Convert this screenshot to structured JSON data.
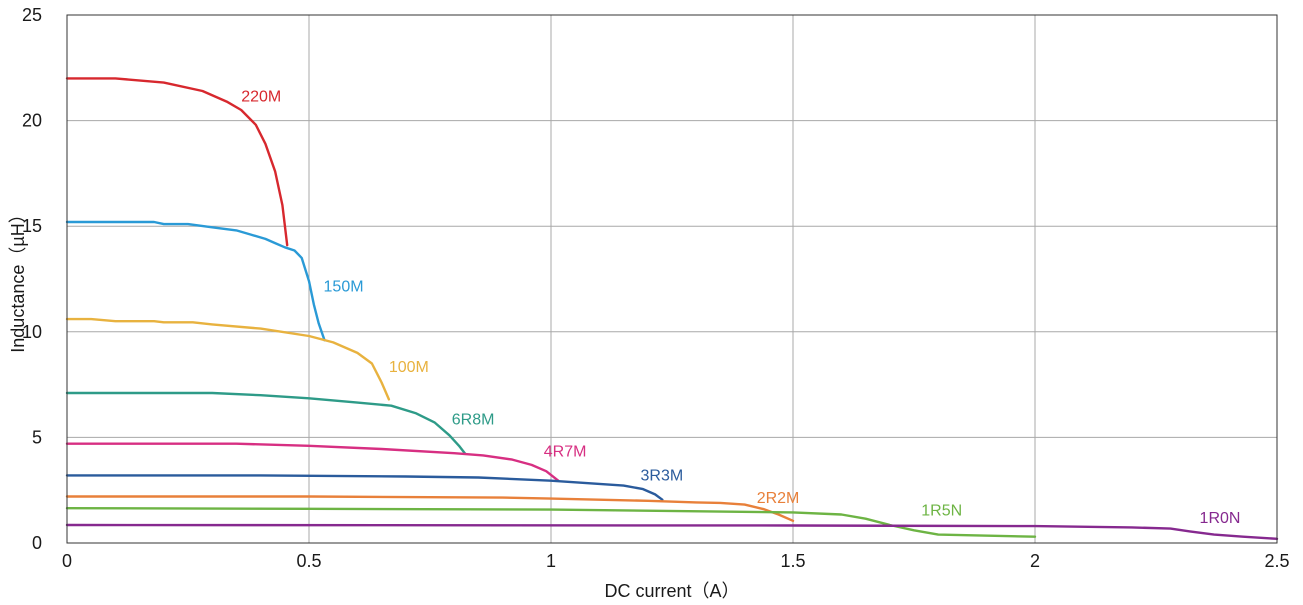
{
  "chart_data": {
    "type": "line",
    "xlabel": "DC current（A）",
    "ylabel": "Inductance（µH）",
    "xlim": [
      0,
      2.5
    ],
    "ylim": [
      0,
      25
    ],
    "x_ticks": [
      0,
      0.5,
      1,
      1.5,
      2,
      2.5
    ],
    "x_tick_labels": [
      "0",
      "0.5",
      "1",
      "1.5",
      "2",
      "2.5"
    ],
    "y_ticks": [
      0,
      5,
      10,
      15,
      20,
      25
    ],
    "y_tick_labels": [
      "0",
      "5",
      "10",
      "15",
      "20",
      "25"
    ],
    "grid": true,
    "legend": "labels placed next to each curve",
    "series": [
      {
        "name": "220M",
        "color": "#d7282e",
        "label_at": [
          0.36,
          20.9
        ],
        "points": [
          [
            0,
            22
          ],
          [
            0.1,
            22
          ],
          [
            0.2,
            21.8
          ],
          [
            0.28,
            21.4
          ],
          [
            0.33,
            20.9
          ],
          [
            0.36,
            20.5
          ],
          [
            0.39,
            19.8
          ],
          [
            0.41,
            18.9
          ],
          [
            0.43,
            17.6
          ],
          [
            0.445,
            16
          ],
          [
            0.455,
            14.1
          ]
        ]
      },
      {
        "name": "150M",
        "color": "#2a9ad6",
        "label_at": [
          0.53,
          11.9
        ],
        "points": [
          [
            0,
            15.2
          ],
          [
            0.18,
            15.2
          ],
          [
            0.2,
            15.1
          ],
          [
            0.25,
            15.1
          ],
          [
            0.3,
            14.95
          ],
          [
            0.35,
            14.8
          ],
          [
            0.38,
            14.6
          ],
          [
            0.41,
            14.4
          ],
          [
            0.43,
            14.2
          ],
          [
            0.45,
            14
          ],
          [
            0.47,
            13.85
          ],
          [
            0.485,
            13.5
          ],
          [
            0.5,
            12.4
          ],
          [
            0.51,
            11.3
          ],
          [
            0.52,
            10.4
          ],
          [
            0.532,
            9.6
          ]
        ]
      },
      {
        "name": "100M",
        "color": "#e8b23f",
        "label_at": [
          0.665,
          8.1
        ],
        "points": [
          [
            0,
            10.6
          ],
          [
            0.05,
            10.6
          ],
          [
            0.1,
            10.5
          ],
          [
            0.18,
            10.5
          ],
          [
            0.2,
            10.45
          ],
          [
            0.26,
            10.45
          ],
          [
            0.3,
            10.35
          ],
          [
            0.4,
            10.15
          ],
          [
            0.5,
            9.8
          ],
          [
            0.55,
            9.5
          ],
          [
            0.6,
            9
          ],
          [
            0.63,
            8.5
          ],
          [
            0.65,
            7.6
          ],
          [
            0.665,
            6.8
          ]
        ]
      },
      {
        "name": "6R8M",
        "color": "#2e9b88",
        "label_at": [
          0.795,
          5.6
        ],
        "points": [
          [
            0,
            7.1
          ],
          [
            0.3,
            7.1
          ],
          [
            0.4,
            7
          ],
          [
            0.5,
            6.85
          ],
          [
            0.6,
            6.65
          ],
          [
            0.67,
            6.5
          ],
          [
            0.72,
            6.15
          ],
          [
            0.76,
            5.7
          ],
          [
            0.79,
            5.1
          ],
          [
            0.81,
            4.6
          ],
          [
            0.822,
            4.25
          ]
        ]
      },
      {
        "name": "4R7M",
        "color": "#d72f82",
        "label_at": [
          0.985,
          4.1
        ],
        "points": [
          [
            0,
            4.7
          ],
          [
            0.35,
            4.7
          ],
          [
            0.5,
            4.6
          ],
          [
            0.65,
            4.45
          ],
          [
            0.8,
            4.25
          ],
          [
            0.86,
            4.15
          ],
          [
            0.92,
            3.95
          ],
          [
            0.96,
            3.7
          ],
          [
            0.99,
            3.4
          ],
          [
            1.015,
            2.95
          ]
        ]
      },
      {
        "name": "3R3M",
        "color": "#2a5b9c",
        "label_at": [
          1.185,
          2.95
        ],
        "points": [
          [
            0,
            3.2
          ],
          [
            0.4,
            3.2
          ],
          [
            0.7,
            3.15
          ],
          [
            0.85,
            3.1
          ],
          [
            1,
            2.95
          ],
          [
            1.1,
            2.8
          ],
          [
            1.15,
            2.72
          ],
          [
            1.19,
            2.55
          ],
          [
            1.215,
            2.3
          ],
          [
            1.23,
            2.05
          ]
        ]
      },
      {
        "name": "2R2M",
        "color": "#e8803a",
        "label_at": [
          1.425,
          1.9
        ],
        "points": [
          [
            0,
            2.2
          ],
          [
            0.5,
            2.2
          ],
          [
            0.9,
            2.15
          ],
          [
            1,
            2.1
          ],
          [
            1.2,
            2
          ],
          [
            1.3,
            1.92
          ],
          [
            1.35,
            1.9
          ],
          [
            1.4,
            1.82
          ],
          [
            1.44,
            1.6
          ],
          [
            1.47,
            1.35
          ],
          [
            1.5,
            1.05
          ]
        ]
      },
      {
        "name": "1R5N",
        "color": "#6db444",
        "label_at": [
          1.765,
          1.3
        ],
        "points": [
          [
            0,
            1.65
          ],
          [
            0.5,
            1.62
          ],
          [
            1,
            1.58
          ],
          [
            1.5,
            1.45
          ],
          [
            1.6,
            1.35
          ],
          [
            1.65,
            1.15
          ],
          [
            1.7,
            0.85
          ],
          [
            1.75,
            0.6
          ],
          [
            1.8,
            0.4
          ],
          [
            2,
            0.3
          ]
        ]
      },
      {
        "name": "1R0N",
        "color": "#86298f",
        "label_at": [
          2.34,
          0.95
        ],
        "points": [
          [
            0,
            0.85
          ],
          [
            1.5,
            0.83
          ],
          [
            2,
            0.8
          ],
          [
            2.2,
            0.74
          ],
          [
            2.28,
            0.68
          ],
          [
            2.32,
            0.55
          ],
          [
            2.37,
            0.4
          ],
          [
            2.43,
            0.3
          ],
          [
            2.5,
            0.2
          ]
        ]
      }
    ]
  }
}
